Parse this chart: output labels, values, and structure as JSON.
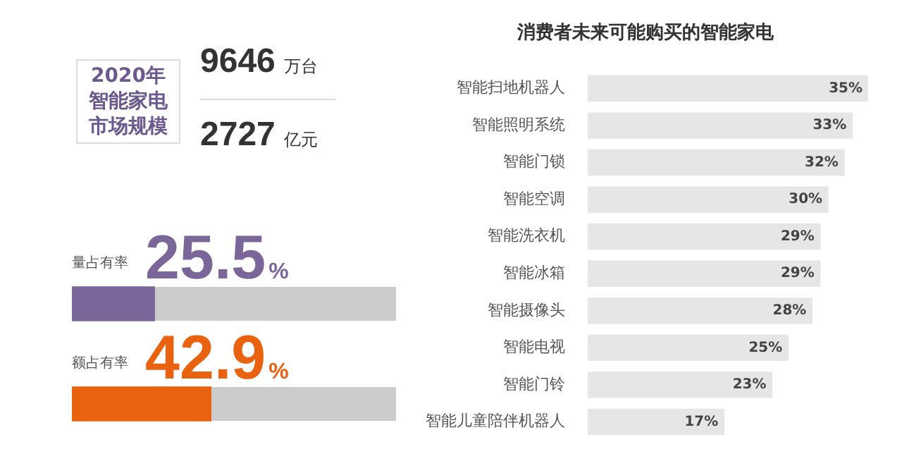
{
  "chart_data": [
    {
      "type": "other",
      "title": "2020年智能家电市场规模",
      "annotations": [
        "9646",
        "万台",
        "2727",
        "亿元"
      ]
    },
    {
      "type": "bar",
      "orientation": "horizontal",
      "categories": [
        "量占有率",
        "额占有率"
      ],
      "values": [
        25.5,
        42.9
      ],
      "colors": [
        "#7b6699",
        "#e8620f"
      ],
      "value_labels": [
        "25.5%",
        "42.9%"
      ],
      "xlim": [
        0,
        100
      ],
      "tick_labels": "y"
    },
    {
      "type": "bar",
      "orientation": "horizontal",
      "title": "消费者未来可能购买的智能家电",
      "categories": [
        "智能扫地机器人",
        "智能照明系统",
        "智能门锁",
        "智能空调",
        "智能洗衣机",
        "智能冰箱",
        "智能摄像头",
        "智能电视",
        "智能门铃",
        "智能儿童陪伴机器人"
      ],
      "values": [
        35,
        33,
        32,
        30,
        29,
        29,
        28,
        25,
        23,
        17
      ],
      "color": "#e6e6e6",
      "value_labels": [
        "35%",
        "33%",
        "32%",
        "30%",
        "29%",
        "29%",
        "28%",
        "25%",
        "23%",
        "17%"
      ],
      "xlim": [
        0,
        35
      ],
      "tick_labels": "y"
    }
  ]
}
